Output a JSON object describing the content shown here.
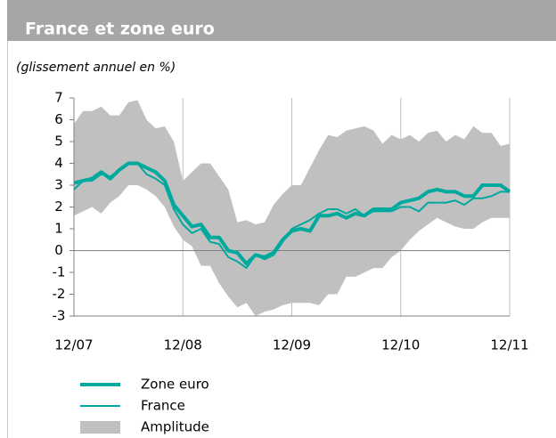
{
  "chart_data": {
    "type": "line",
    "title": "France et zone euro",
    "subtitle": "(glissement annuel en %)",
    "x": [
      0,
      1,
      2,
      3,
      4,
      5,
      6,
      7,
      8,
      9,
      10,
      11,
      12,
      13,
      14,
      15,
      16,
      17,
      18,
      19,
      20,
      21,
      22,
      23,
      24,
      25,
      26,
      27,
      28,
      29,
      30,
      31,
      32,
      33,
      34,
      35,
      36,
      37,
      38,
      39,
      40,
      41,
      42,
      43,
      44,
      45,
      46,
      47,
      48
    ],
    "xlim": [
      0,
      48
    ],
    "xticks": [
      {
        "value": 0,
        "label": "12/07"
      },
      {
        "value": 12,
        "label": "12/08"
      },
      {
        "value": 24,
        "label": "12/09"
      },
      {
        "value": 36,
        "label": "12/10"
      },
      {
        "value": 48,
        "label": "12/11"
      }
    ],
    "ylim": [
      -3,
      7
    ],
    "yticks": [
      -3,
      -2,
      -1,
      0,
      1,
      2,
      3,
      4,
      5,
      6,
      7
    ],
    "grid": true,
    "series": [
      {
        "name": "Zone euro",
        "color": "#00a99d",
        "line_width": 4,
        "values": [
          3.1,
          3.2,
          3.3,
          3.6,
          3.3,
          3.7,
          4.0,
          4.0,
          3.8,
          3.6,
          3.2,
          2.1,
          1.6,
          1.1,
          1.2,
          0.6,
          0.6,
          0.0,
          -0.1,
          -0.6,
          -0.2,
          -0.3,
          -0.1,
          0.5,
          0.9,
          1.0,
          0.9,
          1.6,
          1.6,
          1.7,
          1.5,
          1.7,
          1.6,
          1.9,
          1.9,
          1.9,
          2.2,
          2.3,
          2.4,
          2.7,
          2.8,
          2.7,
          2.7,
          2.5,
          2.5,
          3.0,
          3.0,
          3.0,
          2.7
        ]
      },
      {
        "name": "France",
        "color": "#00a99d",
        "line_width": 2,
        "values": [
          2.8,
          3.2,
          3.2,
          3.5,
          3.4,
          3.7,
          4.0,
          4.0,
          3.5,
          3.3,
          3.0,
          1.9,
          1.2,
          0.8,
          1.0,
          0.4,
          0.3,
          -0.3,
          -0.5,
          -0.8,
          -0.2,
          -0.4,
          -0.2,
          0.4,
          1.0,
          1.2,
          1.4,
          1.7,
          1.9,
          1.9,
          1.7,
          1.9,
          1.6,
          1.8,
          1.8,
          1.8,
          2.0,
          2.0,
          1.8,
          2.2,
          2.2,
          2.2,
          2.3,
          2.1,
          2.4,
          2.4,
          2.5,
          2.7,
          2.7
        ]
      }
    ],
    "amplitude": {
      "name": "Amplitude",
      "color": "#c0c0c0",
      "high": [
        5.8,
        6.4,
        6.4,
        6.6,
        6.2,
        6.2,
        6.8,
        6.9,
        6.0,
        5.6,
        5.7,
        5.0,
        3.2,
        3.6,
        4.0,
        4.0,
        3.4,
        2.8,
        1.3,
        1.4,
        1.2,
        1.3,
        2.1,
        2.6,
        3.0,
        3.0,
        3.8,
        4.6,
        5.3,
        5.2,
        5.5,
        5.6,
        5.7,
        5.5,
        4.9,
        5.3,
        5.1,
        5.3,
        5.0,
        5.4,
        5.5,
        5.0,
        5.3,
        5.1,
        5.7,
        5.4,
        5.4,
        4.8,
        4.9
      ],
      "low": [
        1.6,
        1.8,
        2.0,
        1.7,
        2.2,
        2.5,
        3.0,
        3.0,
        2.8,
        2.5,
        2.0,
        1.1,
        0.5,
        0.2,
        -0.7,
        -0.7,
        -1.5,
        -2.1,
        -2.6,
        -2.4,
        -3.0,
        -2.8,
        -2.7,
        -2.5,
        -2.4,
        -2.4,
        -2.4,
        -2.5,
        -2.0,
        -2.0,
        -1.2,
        -1.2,
        -1.0,
        -0.8,
        -0.8,
        -0.3,
        0.0,
        0.5,
        0.9,
        1.2,
        1.5,
        1.3,
        1.1,
        1.0,
        1.0,
        1.3,
        1.5,
        1.5,
        1.5
      ]
    }
  }
}
